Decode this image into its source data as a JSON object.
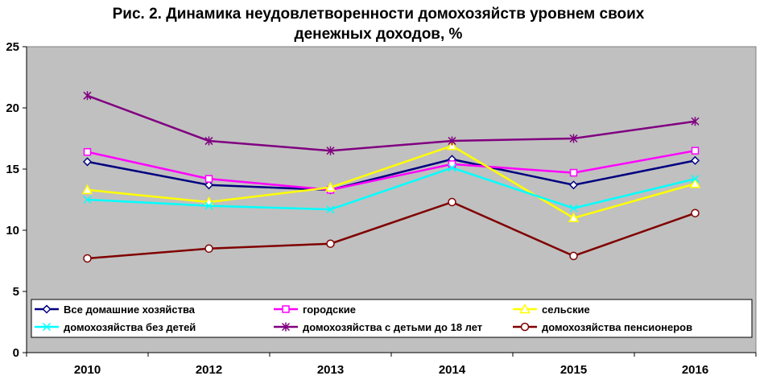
{
  "chart_data": {
    "type": "line",
    "title_line1": "Рис. 2. Динамика неудовлетворенности домохозяйств уровнем своих",
    "title_line2": "денежных доходов, %",
    "categories": [
      "2010",
      "2012",
      "2013",
      "2014",
      "2015",
      "2016"
    ],
    "ylim": [
      0,
      25
    ],
    "yticks": [
      "0",
      "5",
      "10",
      "15",
      "20",
      "25"
    ],
    "grid": false,
    "plot_background": "#c0c0c0",
    "legend_position": "bottom-inside",
    "series": [
      {
        "name": "Все домашние хозяйства",
        "color": "#000080",
        "marker": "diamond",
        "values": [
          15.6,
          13.7,
          13.3,
          15.8,
          13.7,
          15.7
        ]
      },
      {
        "name": "городские",
        "color": "#ff00ff",
        "marker": "square",
        "values": [
          16.4,
          14.2,
          13.3,
          15.4,
          14.7,
          16.5
        ]
      },
      {
        "name": "сельские",
        "color": "#ffff00",
        "marker": "triangle",
        "values": [
          13.3,
          12.3,
          13.5,
          16.9,
          11.0,
          13.8
        ]
      },
      {
        "name": "домохозяйства без детей",
        "color": "#00ffff",
        "marker": "x",
        "values": [
          12.5,
          12.0,
          11.7,
          15.1,
          11.8,
          14.2
        ]
      },
      {
        "name": "домохозяйства с детьми до 18 лет",
        "color": "#800080",
        "marker": "star",
        "values": [
          21.0,
          17.3,
          16.5,
          17.3,
          17.5,
          18.9
        ]
      },
      {
        "name": "домохозяйства пенсионеров",
        "color": "#800000",
        "marker": "circle",
        "values": [
          7.7,
          8.5,
          8.9,
          12.3,
          7.9,
          11.4
        ]
      }
    ]
  }
}
